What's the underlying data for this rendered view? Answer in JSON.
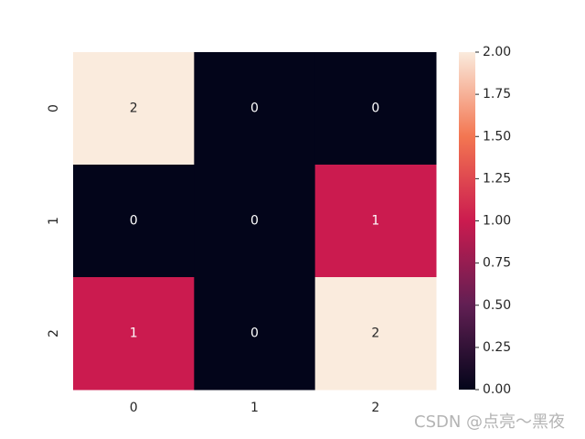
{
  "chart_data": {
    "type": "heatmap",
    "x_categories": [
      "0",
      "1",
      "2"
    ],
    "y_categories": [
      "0",
      "1",
      "2"
    ],
    "values": [
      [
        2,
        0,
        0
      ],
      [
        0,
        0,
        1
      ],
      [
        1,
        0,
        2
      ]
    ],
    "colormap": [
      "#03051a",
      "#611f53",
      "#cb1b4f",
      "#f37651",
      "#faebdd"
    ],
    "clim": [
      0,
      2
    ],
    "cticks": [
      {
        "value": 0,
        "label": "0.00"
      },
      {
        "value": 0.25,
        "label": "0.25"
      },
      {
        "value": 0.5,
        "label": "0.50"
      },
      {
        "value": 0.75,
        "label": "0.75"
      },
      {
        "value": 1,
        "label": "1.00"
      },
      {
        "value": 1.25,
        "label": "1.25"
      },
      {
        "value": 1.5,
        "label": "1.50"
      },
      {
        "value": 1.75,
        "label": "1.75"
      },
      {
        "value": 2,
        "label": "2.00"
      }
    ],
    "annotate": true
  },
  "watermark": "CSDN @点亮～黑夜"
}
